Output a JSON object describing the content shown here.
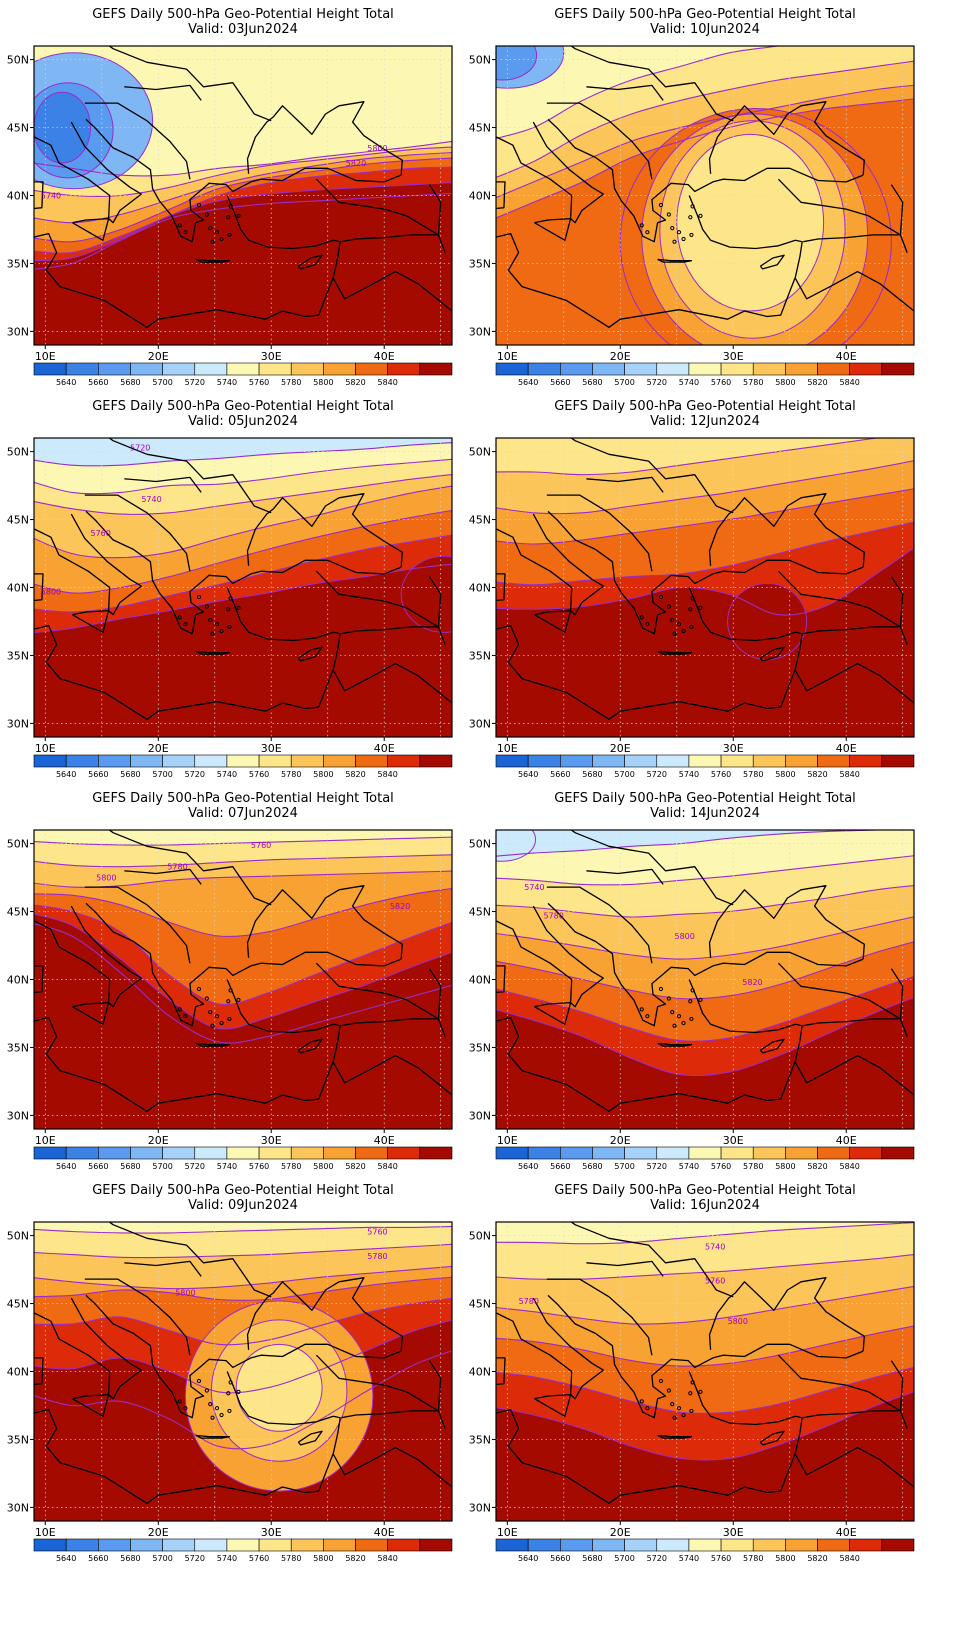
{
  "colors": {
    "levels": [
      5640,
      5660,
      5680,
      5700,
      5720,
      5740,
      5760,
      5780,
      5800,
      5820,
      5840
    ],
    "fills": [
      "#1a64d6",
      "#3c82e6",
      "#5a9bf0",
      "#7fb6f4",
      "#a6d2fa",
      "#cdeafc",
      "#fdf7b4",
      "#fde58a",
      "#fcc55a",
      "#f8a233",
      "#ef6a12",
      "#dd2a08",
      "#a50a00"
    ],
    "contour": "#9a2cc9",
    "border": "#000000",
    "grid": "#d8d8d8"
  },
  "axes": {
    "x_ticks": [
      "10E",
      "20E",
      "30E",
      "40E"
    ],
    "y_ticks": [
      "50N",
      "45N",
      "40N",
      "35N",
      "30N"
    ]
  },
  "panels": [
    {
      "title": "GEFS Daily 500-hPa Geo-Potential Height Total",
      "valid": "Valid: 03Jun2024",
      "labels": [
        "5740",
        "5800",
        "5820"
      ]
    },
    {
      "title": "GEFS Daily 500-hPa Geo-Potential Height Total",
      "valid": "Valid: 10Jun2024",
      "labels": []
    },
    {
      "title": "GEFS Daily 500-hPa Geo-Potential Height Total",
      "valid": "Valid: 05Jun2024",
      "labels": [
        "5720",
        "5740",
        "5760",
        "5800"
      ]
    },
    {
      "title": "GEFS Daily 500-hPa Geo-Potential Height Total",
      "valid": "Valid: 12Jun2024",
      "labels": []
    },
    {
      "title": "GEFS Daily 500-hPa Geo-Potential Height Total",
      "valid": "Valid: 07Jun2024",
      "labels": [
        "5760",
        "5780",
        "5800",
        "5820"
      ]
    },
    {
      "title": "GEFS Daily 500-hPa Geo-Potential Height Total",
      "valid": "Valid: 14Jun2024",
      "labels": [
        "5740",
        "5780",
        "5800",
        "5820"
      ]
    },
    {
      "title": "GEFS Daily 500-hPa Geo-Potential Height Total",
      "valid": "Valid: 09Jun2024",
      "labels": [
        "5760",
        "5780",
        "5800"
      ]
    },
    {
      "title": "GEFS Daily 500-hPa Geo-Potential Height Total",
      "valid": "Valid: 16Jun2024",
      "labels": [
        "5740",
        "5760",
        "5780",
        "5800"
      ]
    }
  ]
}
